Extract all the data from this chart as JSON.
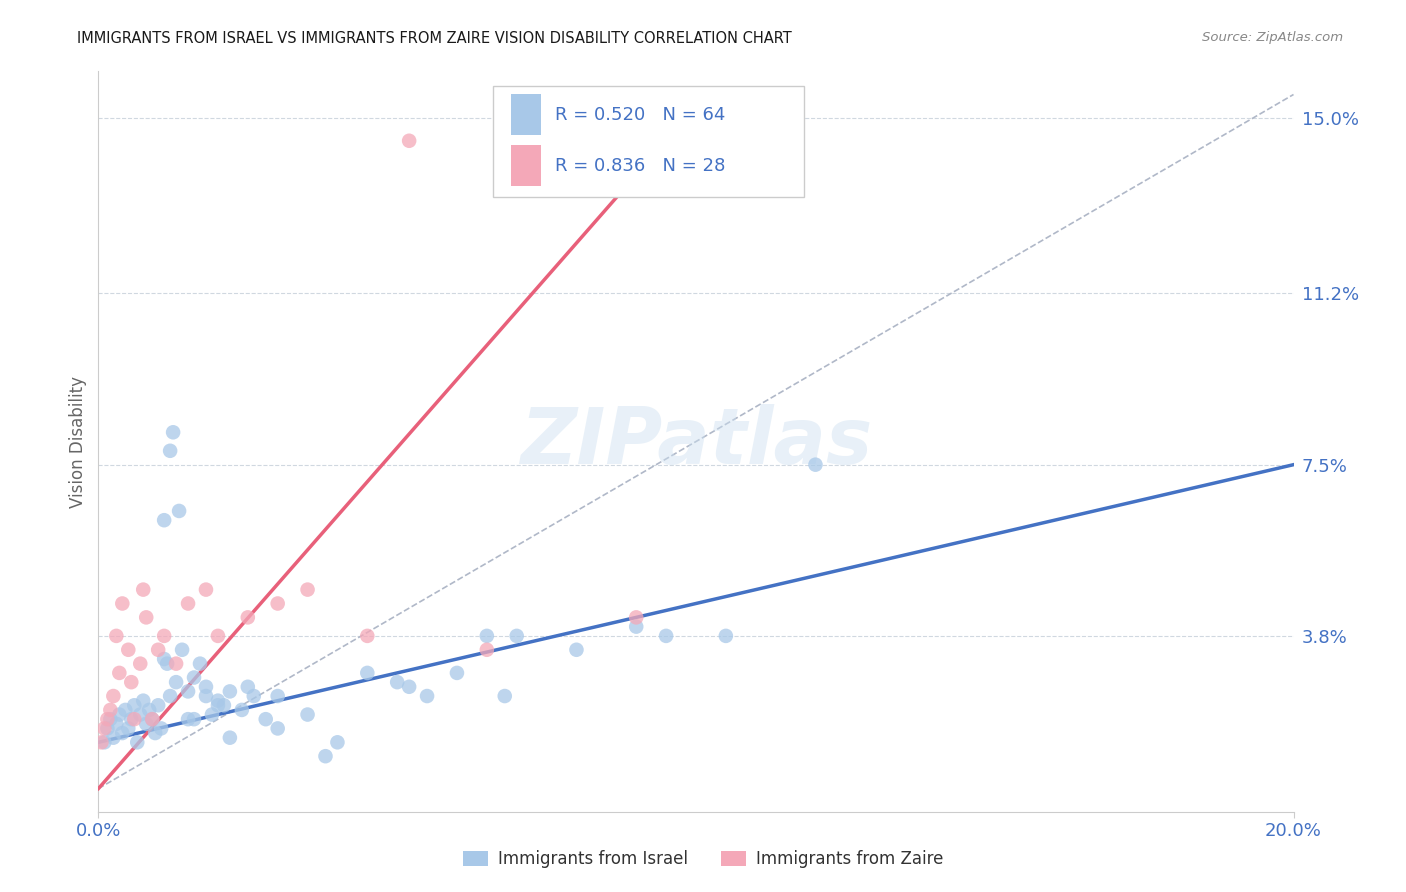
{
  "title": "IMMIGRANTS FROM ISRAEL VS IMMIGRANTS FROM ZAIRE VISION DISABILITY CORRELATION CHART",
  "source": "Source: ZipAtlas.com",
  "ylabel": "Vision Disability",
  "ytick_labels": [
    "3.8%",
    "7.5%",
    "11.2%",
    "15.0%"
  ],
  "ytick_values": [
    3.8,
    7.5,
    11.2,
    15.0
  ],
  "xtick_labels": [
    "0.0%",
    "20.0%"
  ],
  "xtick_values": [
    0.0,
    20.0
  ],
  "xmin": 0.0,
  "xmax": 20.0,
  "ymin": 0.0,
  "ymax": 16.0,
  "israel_R": "0.520",
  "israel_N": "64",
  "zaire_R": "0.836",
  "zaire_N": "28",
  "israel_color": "#a8c8e8",
  "zaire_color": "#f4a8b8",
  "israel_line_color": "#4472c4",
  "zaire_line_color": "#e8607a",
  "diagonal_color": "#b0b8c8",
  "legend_israel_label": "Immigrants from Israel",
  "legend_zaire_label": "Immigrants from Zaire",
  "title_color": "#1a1a1a",
  "axis_label_color": "#4472c4",
  "watermark": "ZIPatlas",
  "israel_scatter_x": [
    0.1,
    0.15,
    0.2,
    0.25,
    0.3,
    0.35,
    0.4,
    0.45,
    0.5,
    0.55,
    0.6,
    0.65,
    0.7,
    0.75,
    0.8,
    0.85,
    0.9,
    0.95,
    1.0,
    1.05,
    1.1,
    1.15,
    1.2,
    1.3,
    1.4,
    1.5,
    1.6,
    1.7,
    1.8,
    1.9,
    2.0,
    2.1,
    2.2,
    2.4,
    2.6,
    2.8,
    3.0,
    3.5,
    4.0,
    4.5,
    5.0,
    5.5,
    6.0,
    6.5,
    7.0,
    8.0,
    9.0,
    10.5,
    12.0,
    1.1,
    1.2,
    1.25,
    1.35,
    1.5,
    1.6,
    1.8,
    2.0,
    2.2,
    2.5,
    3.0,
    3.8,
    5.2,
    6.8,
    9.5
  ],
  "israel_scatter_y": [
    1.5,
    1.8,
    2.0,
    1.6,
    1.9,
    2.1,
    1.7,
    2.2,
    1.8,
    2.0,
    2.3,
    1.5,
    2.1,
    2.4,
    1.9,
    2.2,
    2.0,
    1.7,
    2.3,
    1.8,
    3.3,
    3.2,
    2.5,
    2.8,
    3.5,
    2.6,
    2.9,
    3.2,
    2.7,
    2.1,
    2.4,
    2.3,
    2.6,
    2.2,
    2.5,
    2.0,
    1.8,
    2.1,
    1.5,
    3.0,
    2.8,
    2.5,
    3.0,
    3.8,
    3.8,
    3.5,
    4.0,
    3.8,
    7.5,
    6.3,
    7.8,
    8.2,
    6.5,
    2.0,
    2.0,
    2.5,
    2.3,
    1.6,
    2.7,
    2.5,
    1.2,
    2.7,
    2.5,
    3.8
  ],
  "zaire_scatter_x": [
    0.05,
    0.1,
    0.15,
    0.2,
    0.25,
    0.3,
    0.35,
    0.4,
    0.5,
    0.55,
    0.6,
    0.7,
    0.75,
    0.8,
    0.9,
    1.0,
    1.1,
    1.3,
    1.5,
    1.8,
    2.0,
    2.5,
    3.0,
    3.5,
    4.5,
    5.2,
    6.5,
    9.0
  ],
  "zaire_scatter_y": [
    1.5,
    1.8,
    2.0,
    2.2,
    2.5,
    3.8,
    3.0,
    4.5,
    3.5,
    2.8,
    2.0,
    3.2,
    4.8,
    4.2,
    2.0,
    3.5,
    3.8,
    3.2,
    4.5,
    4.8,
    3.8,
    4.2,
    4.5,
    4.8,
    3.8,
    14.5,
    3.5,
    4.2
  ],
  "israel_line_x0": 0.0,
  "israel_line_x1": 20.0,
  "israel_line_y0": 1.5,
  "israel_line_y1": 7.5,
  "zaire_line_x0": 0.0,
  "zaire_line_x1": 9.5,
  "zaire_line_y0": 0.5,
  "zaire_line_y1": 14.5,
  "diagonal_line_x0": 0.0,
  "diagonal_line_x1": 20.0,
  "diagonal_line_y0": 0.5,
  "diagonal_line_y1": 15.5
}
